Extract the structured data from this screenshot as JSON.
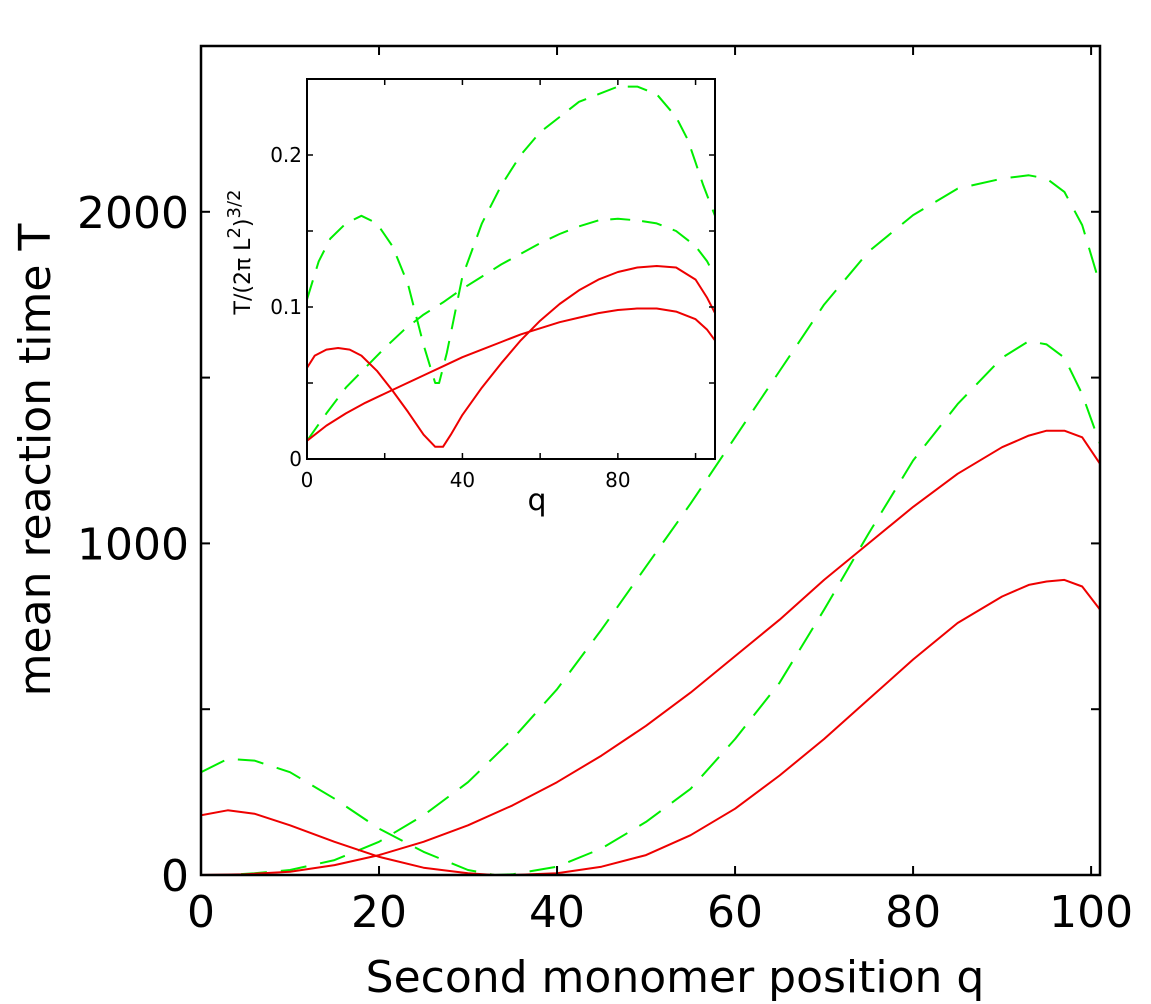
{
  "chart_data": [
    {
      "id": "main",
      "type": "line",
      "title": "",
      "xlabel": "Second monomer position  q",
      "ylabel": "mean reaction time T",
      "xlim": [
        0,
        101
      ],
      "ylim": [
        0,
        2500
      ],
      "xticks": [
        0,
        20,
        40,
        60,
        80,
        100
      ],
      "yticks": [
        0,
        500,
        1000,
        1500,
        2000
      ],
      "xtick_labels": [
        "0",
        "20",
        "40",
        "60",
        "80",
        "100"
      ],
      "ytick_labels": [
        "0",
        "",
        "1000",
        "",
        "2000"
      ],
      "grid": false,
      "series": [
        {
          "name": "green-dashed-upper",
          "color": "#00ee00",
          "dash": "dashed",
          "x": [
            0,
            3,
            6,
            10,
            15,
            20,
            25,
            30,
            35,
            40,
            45,
            50,
            55,
            60,
            65,
            70,
            75,
            80,
            85,
            90,
            93,
            95,
            97,
            99,
            101
          ],
          "y": [
            0,
            0,
            5,
            15,
            45,
            100,
            180,
            280,
            410,
            560,
            740,
            930,
            1120,
            1320,
            1520,
            1720,
            1880,
            1990,
            2070,
            2100,
            2110,
            2100,
            2060,
            1960,
            1780
          ]
        },
        {
          "name": "green-dashed-lower",
          "color": "#00ee00",
          "dash": "dashed",
          "x": [
            0,
            3,
            6,
            10,
            15,
            20,
            25,
            30,
            33,
            35,
            40,
            45,
            50,
            55,
            60,
            65,
            70,
            75,
            80,
            85,
            90,
            93,
            95,
            97,
            99,
            101
          ],
          "y": [
            310,
            350,
            345,
            310,
            230,
            140,
            70,
            15,
            0,
            2,
            25,
            80,
            160,
            260,
            410,
            580,
            800,
            1030,
            1250,
            1420,
            1560,
            1610,
            1600,
            1560,
            1450,
            1300
          ]
        },
        {
          "name": "red-solid-upper",
          "color": "#ee0000",
          "dash": "solid",
          "x": [
            0,
            5,
            10,
            15,
            20,
            25,
            30,
            35,
            40,
            45,
            50,
            55,
            60,
            65,
            70,
            75,
            80,
            85,
            90,
            93,
            95,
            97,
            99,
            101
          ],
          "y": [
            0,
            2,
            10,
            30,
            60,
            100,
            150,
            210,
            280,
            360,
            450,
            550,
            660,
            770,
            890,
            1000,
            1110,
            1210,
            1290,
            1325,
            1340,
            1340,
            1320,
            1240
          ]
        },
        {
          "name": "red-solid-lower",
          "color": "#ee0000",
          "dash": "solid",
          "x": [
            0,
            3,
            6,
            10,
            15,
            20,
            25,
            30,
            33,
            35,
            40,
            45,
            50,
            55,
            60,
            65,
            70,
            75,
            80,
            85,
            90,
            93,
            95,
            97,
            99,
            101
          ],
          "y": [
            180,
            195,
            185,
            150,
            100,
            55,
            22,
            5,
            0,
            0,
            5,
            25,
            60,
            120,
            200,
            300,
            410,
            530,
            650,
            760,
            840,
            875,
            885,
            890,
            870,
            800
          ]
        }
      ]
    },
    {
      "id": "inset",
      "type": "line",
      "title": "",
      "xlabel": "q",
      "ylabel_base": "T/(2π L",
      "ylabel_sup1": "2",
      "ylabel_mid": ")",
      "ylabel_sup2": "3/2",
      "xlim": [
        0,
        105
      ],
      "ylim": [
        0,
        0.25
      ],
      "xticks": [
        0,
        20,
        40,
        60,
        80,
        100
      ],
      "yticks": [
        0,
        0.05,
        0.1,
        0.15,
        0.2
      ],
      "xtick_labels": [
        "0",
        "",
        "40",
        "",
        "80",
        ""
      ],
      "ytick_labels": [
        "0",
        "",
        "0.1",
        "",
        "0.2"
      ],
      "grid": false,
      "series": [
        {
          "name": "green-dashed-upper",
          "color": "#00ee00",
          "dash": "dashed",
          "x": [
            0,
            3,
            6,
            10,
            14,
            18,
            22,
            26,
            30,
            33,
            34,
            36,
            40,
            45,
            50,
            55,
            60,
            65,
            70,
            75,
            80,
            85,
            90,
            95,
            98,
            100,
            102,
            105
          ],
          "y": [
            0.105,
            0.13,
            0.145,
            0.155,
            0.16,
            0.155,
            0.14,
            0.115,
            0.075,
            0.05,
            0.05,
            0.07,
            0.12,
            0.155,
            0.18,
            0.2,
            0.215,
            0.225,
            0.235,
            0.24,
            0.245,
            0.245,
            0.24,
            0.225,
            0.21,
            0.195,
            0.18,
            0.16
          ]
        },
        {
          "name": "green-dashed-lower",
          "color": "#00ee00",
          "dash": "dashed",
          "x": [
            0,
            5,
            10,
            15,
            20,
            25,
            30,
            35,
            40,
            45,
            50,
            55,
            60,
            65,
            70,
            75,
            80,
            85,
            90,
            95,
            100,
            103,
            105
          ],
          "y": [
            0.012,
            0.03,
            0.047,
            0.06,
            0.073,
            0.085,
            0.095,
            0.103,
            0.112,
            0.12,
            0.128,
            0.135,
            0.142,
            0.148,
            0.153,
            0.157,
            0.158,
            0.157,
            0.155,
            0.15,
            0.14,
            0.13,
            0.12
          ]
        },
        {
          "name": "red-solid-upper",
          "color": "#ee0000",
          "dash": "solid",
          "x": [
            0,
            2,
            5,
            8,
            11,
            14,
            18,
            22,
            26,
            30,
            33,
            35,
            37,
            40,
            45,
            50,
            55,
            60,
            65,
            70,
            75,
            80,
            85,
            90,
            95,
            100,
            103,
            105
          ],
          "y": [
            0.06,
            0.068,
            0.072,
            0.073,
            0.072,
            0.068,
            0.058,
            0.045,
            0.031,
            0.016,
            0.008,
            0.008,
            0.016,
            0.029,
            0.047,
            0.063,
            0.078,
            0.091,
            0.102,
            0.111,
            0.118,
            0.123,
            0.126,
            0.127,
            0.126,
            0.118,
            0.106,
            0.096
          ]
        },
        {
          "name": "red-solid-lower",
          "color": "#ee0000",
          "dash": "solid",
          "x": [
            0,
            5,
            10,
            15,
            20,
            25,
            30,
            35,
            40,
            45,
            50,
            55,
            60,
            65,
            70,
            75,
            80,
            85,
            90,
            95,
            100,
            103,
            105
          ],
          "y": [
            0.012,
            0.022,
            0.03,
            0.037,
            0.043,
            0.049,
            0.055,
            0.061,
            0.067,
            0.072,
            0.077,
            0.082,
            0.086,
            0.09,
            0.093,
            0.096,
            0.098,
            0.099,
            0.099,
            0.097,
            0.092,
            0.085,
            0.078
          ]
        }
      ]
    }
  ]
}
